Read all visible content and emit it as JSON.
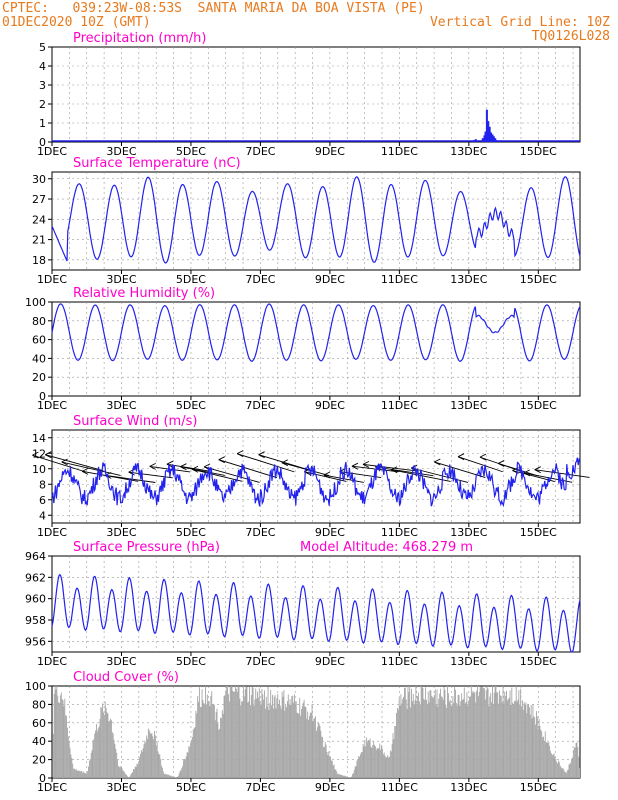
{
  "header": {
    "line1": "CPTEC:   039:23W-08:53S  SANTA MARIA DA BOA VISTA (PE)",
    "line2_left": "01DEC2020 10Z (GMT)",
    "line2_right": "Vertical Grid Line: 10Z",
    "line3_right": "TQ0126L028"
  },
  "colors": {
    "header": "#e87a1e",
    "title": "#ff00cc",
    "series": "#2222ee",
    "cloud": "#a6a6a6",
    "grid": "#9a9a9a",
    "axis": "#000000"
  },
  "x_ticks": [
    "1DEC",
    "3DEC",
    "5DEC",
    "7DEC",
    "9DEC",
    "11DEC",
    "13DEC",
    "15DEC"
  ],
  "chart_data": [
    {
      "id": "precip",
      "type": "bar",
      "title": "Precipitation (mm/h)",
      "ylim": [
        0,
        5
      ],
      "yticks": [
        0,
        1,
        2,
        3,
        4,
        5
      ],
      "x_unit": "days since 01DEC2020 10Z",
      "values": [
        {
          "x": 12.1,
          "y": 0.05
        },
        {
          "x": 12.15,
          "y": 0.1
        },
        {
          "x": 12.2,
          "y": 0.15
        },
        {
          "x": 12.4,
          "y": 0.2
        },
        {
          "x": 12.45,
          "y": 0.35
        },
        {
          "x": 12.48,
          "y": 0.55
        },
        {
          "x": 12.52,
          "y": 1.7
        },
        {
          "x": 12.56,
          "y": 1.1
        },
        {
          "x": 12.6,
          "y": 0.8
        },
        {
          "x": 12.64,
          "y": 0.5
        },
        {
          "x": 12.68,
          "y": 0.4
        },
        {
          "x": 12.72,
          "y": 0.3
        },
        {
          "x": 12.76,
          "y": 0.2
        },
        {
          "x": 12.8,
          "y": 0.1
        },
        {
          "x": 12.85,
          "y": 0.05
        }
      ]
    },
    {
      "id": "temp",
      "type": "line",
      "title": "Surface Temperature (nC)",
      "ylim": [
        16.5,
        31
      ],
      "yticks": [
        18,
        21,
        24,
        27,
        30
      ],
      "min_mean": 18.5,
      "max_mean": 29.2,
      "min_phase": 0.27,
      "max_phase": 0.72,
      "perturbation": {
        "from": 12.2,
        "to": 13.3,
        "value": 23
      }
    },
    {
      "id": "rh",
      "type": "line",
      "title": "Relative Humidity (%)",
      "ylim": [
        0,
        100
      ],
      "yticks": [
        0,
        20,
        40,
        60,
        80,
        100
      ],
      "min_mean": 38,
      "max_mean": 97,
      "min_phase": 0.75,
      "max_phase": 0.25,
      "perturbation": {
        "from": 12.2,
        "to": 13.3,
        "value": 80
      }
    },
    {
      "id": "wind",
      "type": "line",
      "title": "Surface Wind (m/s)",
      "ylim": [
        3,
        15
      ],
      "yticks": [
        4,
        6,
        8,
        10,
        12,
        14
      ],
      "mean": 8,
      "amplitude": 1.8
    },
    {
      "id": "pressure",
      "type": "line",
      "title": "Surface Pressure (hPa)",
      "annotation": "Model Altitude: 468.279 m",
      "ylim": [
        955,
        964
      ],
      "yticks": [
        956,
        958,
        960,
        962,
        964
      ],
      "mean": 959.5,
      "amplitude": 2.2,
      "trend": -0.15
    },
    {
      "id": "cloud",
      "type": "area",
      "title": "Cloud Cover (%)",
      "ylim": [
        0,
        100
      ],
      "yticks": [
        0,
        20,
        40,
        60,
        80,
        100
      ],
      "levels": [
        [
          0.0,
          0
        ],
        [
          0.05,
          95
        ],
        [
          0.3,
          90
        ],
        [
          0.6,
          10
        ],
        [
          1.0,
          5
        ],
        [
          1.2,
          45
        ],
        [
          1.5,
          80
        ],
        [
          1.7,
          60
        ],
        [
          1.9,
          15
        ],
        [
          2.2,
          0
        ],
        [
          2.5,
          20
        ],
        [
          2.8,
          55
        ],
        [
          3.0,
          40
        ],
        [
          3.2,
          5
        ],
        [
          3.6,
          0
        ],
        [
          4.0,
          40
        ],
        [
          4.2,
          85
        ],
        [
          4.5,
          95
        ],
        [
          4.8,
          60
        ],
        [
          5.0,
          92
        ],
        [
          5.6,
          90
        ],
        [
          6.0,
          88
        ],
        [
          6.5,
          85
        ],
        [
          7.0,
          80
        ],
        [
          7.5,
          70
        ],
        [
          7.9,
          30
        ],
        [
          8.2,
          5
        ],
        [
          8.6,
          0
        ],
        [
          9.0,
          40
        ],
        [
          9.4,
          35
        ],
        [
          9.7,
          20
        ],
        [
          10.0,
          85
        ],
        [
          10.5,
          92
        ],
        [
          11.0,
          90
        ],
        [
          11.5,
          88
        ],
        [
          12.0,
          92
        ],
        [
          12.5,
          88
        ],
        [
          13.0,
          95
        ],
        [
          13.5,
          90
        ],
        [
          14.0,
          60
        ],
        [
          14.5,
          20
        ],
        [
          14.8,
          5
        ],
        [
          15.1,
          40
        ],
        [
          15.2,
          0
        ]
      ]
    }
  ]
}
